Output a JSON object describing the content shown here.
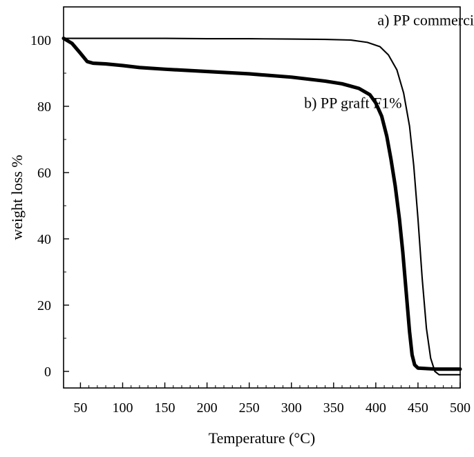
{
  "chart_data": {
    "type": "line",
    "title": "",
    "xlabel": "Temperature (°C)",
    "ylabel": "weight loss %",
    "xlim": [
      30,
      500
    ],
    "ylim": [
      -5,
      110
    ],
    "x_ticks": [
      50,
      100,
      150,
      200,
      250,
      300,
      350,
      400,
      450,
      500
    ],
    "y_ticks": [
      0,
      20,
      40,
      60,
      80,
      100
    ],
    "grid": false,
    "legend": "none",
    "series": [
      {
        "name": "a) PP commercial",
        "line_weight": "thin",
        "color": "#000000",
        "points": [
          [
            30,
            100.5
          ],
          [
            50,
            100.5
          ],
          [
            100,
            100.5
          ],
          [
            150,
            100.5
          ],
          [
            200,
            100.4
          ],
          [
            250,
            100.4
          ],
          [
            300,
            100.3
          ],
          [
            340,
            100.2
          ],
          [
            370,
            100.0
          ],
          [
            390,
            99.3
          ],
          [
            405,
            98.0
          ],
          [
            415,
            95.5
          ],
          [
            425,
            91.0
          ],
          [
            433,
            84.0
          ],
          [
            440,
            74.0
          ],
          [
            445,
            62.0
          ],
          [
            450,
            46.0
          ],
          [
            455,
            28.0
          ],
          [
            460,
            13.0
          ],
          [
            465,
            4.0
          ],
          [
            470,
            0.0
          ],
          [
            475,
            -1.0
          ],
          [
            500,
            -1.0
          ]
        ]
      },
      {
        "name": "b) PP graft F1%",
        "line_weight": "thick",
        "color": "#000000",
        "points": [
          [
            30,
            100.5
          ],
          [
            40,
            99.0
          ],
          [
            50,
            96.0
          ],
          [
            58,
            93.5
          ],
          [
            65,
            93.0
          ],
          [
            80,
            92.8
          ],
          [
            100,
            92.3
          ],
          [
            120,
            91.7
          ],
          [
            150,
            91.2
          ],
          [
            200,
            90.5
          ],
          [
            250,
            89.8
          ],
          [
            300,
            88.8
          ],
          [
            340,
            87.6
          ],
          [
            360,
            86.8
          ],
          [
            380,
            85.4
          ],
          [
            393,
            83.5
          ],
          [
            400,
            81.0
          ],
          [
            407,
            77.0
          ],
          [
            413,
            71.0
          ],
          [
            418,
            64.0
          ],
          [
            423,
            56.0
          ],
          [
            428,
            46.0
          ],
          [
            432,
            36.0
          ],
          [
            436,
            24.0
          ],
          [
            440,
            12.0
          ],
          [
            443,
            5.0
          ],
          [
            446,
            2.0
          ],
          [
            450,
            1.0
          ],
          [
            470,
            0.7
          ],
          [
            500,
            0.7
          ]
        ]
      }
    ],
    "annotations": [
      {
        "text": "a) PP commercial",
        "x": 402,
        "y": 104.5
      },
      {
        "text": "b) PP graft F1%",
        "x": 315,
        "y": 79.5
      }
    ]
  }
}
